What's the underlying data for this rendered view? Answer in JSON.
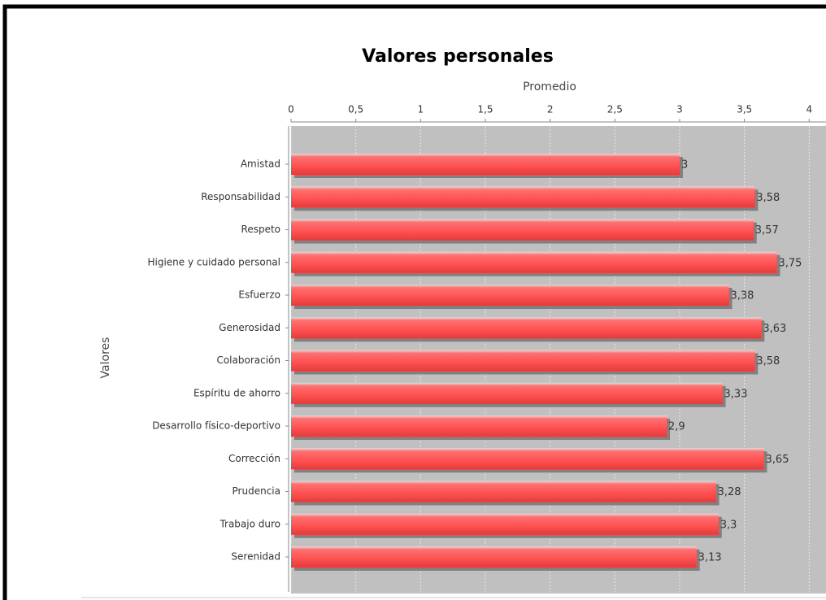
{
  "chart_data": {
    "type": "bar",
    "orientation": "horizontal",
    "title": "Valores personales",
    "x_label": "Promedio",
    "y_label": "Valores",
    "categories": [
      "Amistad",
      "Responsabilidad",
      "Respeto",
      "Higiene y cuidado personal",
      "Esfuerzo",
      "Generosidad",
      "Colaboración",
      "Espíritu de ahorro",
      "Desarrollo físico-deportivo",
      "Corrección",
      "Prudencia",
      "Trabajo duro",
      "Serenidad"
    ],
    "values": [
      3,
      3.58,
      3.57,
      3.75,
      3.38,
      3.63,
      3.58,
      3.33,
      2.9,
      3.65,
      3.28,
      3.3,
      3.13
    ],
    "value_labels": [
      "3",
      "3,58",
      "3,57",
      "3,75",
      "3,38",
      "3,63",
      "3,58",
      "3,33",
      "2,9",
      "3,65",
      "3,28",
      "3,3",
      "3,13"
    ],
    "color": "#ff5050",
    "xlim": [
      0,
      4.13
    ],
    "xticks": [
      0,
      {
        "value": 0.5,
        "label": "0,5"
      },
      1,
      {
        "value": 1.5,
        "label": "1,5"
      },
      2,
      {
        "value": 2.5,
        "label": "2,5"
      },
      3,
      {
        "value": 3.5,
        "label": "3,5"
      },
      4
    ],
    "grid": true
  }
}
